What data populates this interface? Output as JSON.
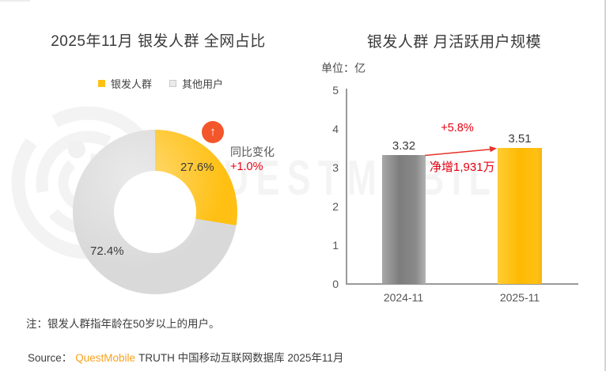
{
  "watermark": {
    "text": "QUESTMOBILE"
  },
  "left_chart": {
    "title": "2025年11月 银发人群 全网占比",
    "legend": [
      {
        "label": "银发人群",
        "color": "#FFC013"
      },
      {
        "label": "其他用户",
        "color": "#D9D9D9"
      }
    ],
    "yoy_label": "同比变化",
    "yoy_value": "+1.0%",
    "badge_icon": "↑",
    "badge_color": "#F4562B"
  },
  "right_chart": {
    "title": "银发人群 月活跃用户规模",
    "unit_label": "单位：亿",
    "growth_label": "+5.8%",
    "net_increase_label": "净增1,931万",
    "accent_red": "#E60012"
  },
  "notes": {
    "note": "注：银发人群指年龄在50岁以上的用户。",
    "source_prefix": "Source：",
    "source_brand": "QuestMobile",
    "source_suffix": "TRUTH 中国移动互联网数据库 2025年11月"
  },
  "chart_data": [
    {
      "type": "pie",
      "donut": true,
      "title": "2025年11月 银发人群 全网占比",
      "labels": [
        "银发人群",
        "其他用户"
      ],
      "values": [
        27.6,
        72.4
      ],
      "value_labels": [
        "27.6%",
        "72.4%"
      ],
      "unit": "%",
      "colors": [
        "#FFC013",
        "#D9D9D9"
      ],
      "start_angle_deg": 0,
      "annotations": [
        "同比变化",
        "+1.0%"
      ],
      "legend_position": "top"
    },
    {
      "type": "bar",
      "title": "银发人群 月活跃用户规模",
      "ylabel": "单位：亿",
      "categories": [
        "2024-11",
        "2025-11"
      ],
      "values": [
        3.32,
        3.51
      ],
      "value_labels": [
        "3.32",
        "3.51"
      ],
      "ylim": [
        0,
        5
      ],
      "ytick_labels": [
        "5",
        "4",
        "3",
        "2",
        "1",
        "0"
      ],
      "colors": [
        "#8C8C8C",
        "#FFC013"
      ],
      "grid": false,
      "annotations": [
        "+5.8%",
        "净增1,931万"
      ]
    }
  ]
}
